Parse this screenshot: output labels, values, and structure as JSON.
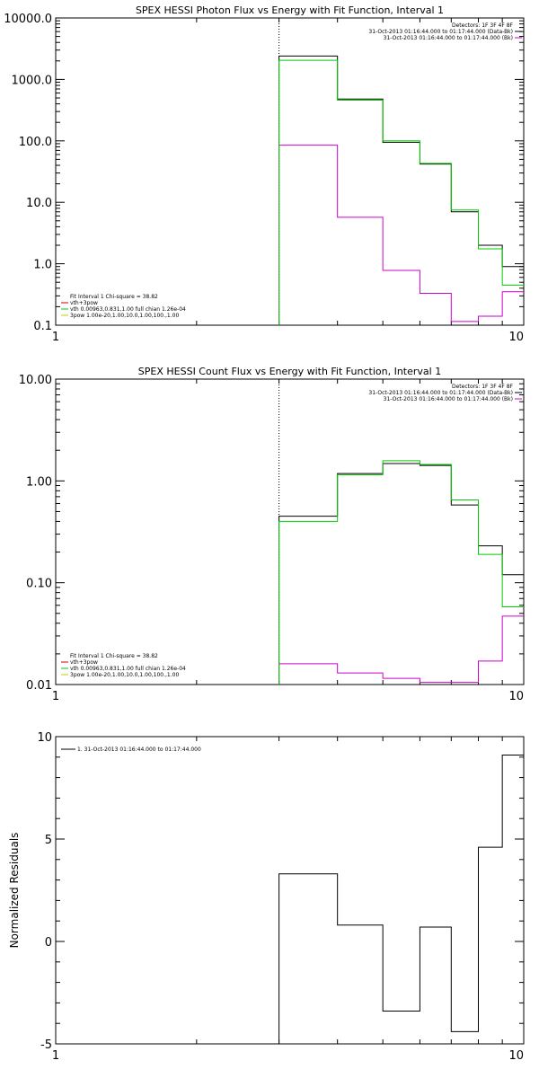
{
  "chart_data": [
    {
      "type": "line",
      "title": "SPEX HESSI Photon Flux vs Energy with Fit Function, Interval 1",
      "xlabel": "",
      "ylabel": "",
      "x_scale": "log",
      "y_scale": "log",
      "xlim": [
        1,
        10
      ],
      "ylim": [
        0.1,
        10000
      ],
      "x_ticks": [
        "1",
        "10"
      ],
      "y_ticks": [
        "0.1",
        "1.0",
        "10.0",
        "100.0",
        "1000.0",
        "10000.0"
      ],
      "marker_line_x": 3,
      "edges": [
        3,
        4,
        5,
        6,
        7,
        8,
        9,
        10
      ],
      "series": [
        {
          "name": "31-Oct-2013 01:16:44.000 to 01:17:44.000 (Data-Bk)",
          "color": "#000000",
          "values": [
            2400,
            480,
            95,
            42,
            7,
            2,
            0.9
          ]
        },
        {
          "name": "31-Oct-2013 01:16:44.000 to 01:17:44.000 (Bk)",
          "color": "#cc00cc",
          "values": [
            85,
            5.7,
            0.78,
            0.33,
            0.115,
            0.14,
            0.35
          ]
        },
        {
          "name": "vth+3pow",
          "color": "#00cc00",
          "values": [
            2050,
            460,
            100,
            43,
            7.5,
            1.75,
            0.45
          ]
        }
      ],
      "legend_top": {
        "detectors": "Detectors: 1F 3F 4F 8F",
        "entries": [
          "31-Oct-2013 01:16:44.000 to 01:17:44.000 (Data-Bk)",
          "31-Oct-2013 01:16:44.000 to 01:17:44.000 (Bk)"
        ]
      },
      "legend_bottom": [
        {
          "text": "Fit Interval 1    Chi-square = 38.82",
          "color": "#000000"
        },
        {
          "text": "vth+3pow",
          "color": "#cc0000"
        },
        {
          "text": "vth 0.00963,0.831,1.00   full chian 1.26e-04",
          "color": "#00cc00"
        },
        {
          "text": "3pow 1.00e-20,1.00,10.0,1.00,100.,1.00",
          "color": "#cccc00"
        }
      ]
    },
    {
      "type": "line",
      "title": "SPEX HESSI Count Flux vs Energy with Fit Function, Interval 1",
      "xlabel": "",
      "ylabel": "",
      "x_scale": "log",
      "y_scale": "log",
      "xlim": [
        1,
        10
      ],
      "ylim": [
        0.01,
        10
      ],
      "x_ticks": [
        "1",
        "10"
      ],
      "y_ticks": [
        "0.01",
        "0.10",
        "1.00",
        "10.00"
      ],
      "marker_line_x": 3,
      "edges": [
        3,
        4,
        5,
        6,
        7,
        8,
        9,
        10
      ],
      "series": [
        {
          "name": "31-Oct-2013 01:16:44.000 to 01:17:44.000 (Data-Bk)",
          "color": "#000000",
          "values": [
            0.45,
            1.18,
            1.48,
            1.42,
            0.58,
            0.23,
            0.12
          ]
        },
        {
          "name": "31-Oct-2013 01:16:44.000 to 01:17:44.000 (Bk)",
          "color": "#cc00cc",
          "values": [
            0.016,
            0.013,
            0.0115,
            0.0105,
            0.0105,
            0.017,
            0.047
          ]
        },
        {
          "name": "vth+3pow",
          "color": "#00cc00",
          "values": [
            0.4,
            1.15,
            1.58,
            1.45,
            0.65,
            0.19,
            0.058
          ]
        }
      ],
      "legend_top": {
        "detectors": "Detectors: 1F 3F 4F 8F",
        "entries": [
          "31-Oct-2013 01:16:44.000 to 01:17:44.000 (Data-Bk)",
          "31-Oct-2013 01:16:44.000 to 01:17:44.000 (Bk)"
        ]
      },
      "legend_bottom": [
        {
          "text": "Fit Interval 1    Chi-square = 38.82",
          "color": "#000000"
        },
        {
          "text": "vth+3pow",
          "color": "#cc0000"
        },
        {
          "text": "vth 0.00963,0.831,1.00   full chian 1.26e-04",
          "color": "#00cc00"
        },
        {
          "text": "3pow 1.00e-20,1.00,10.0,1.00,100.,1.00",
          "color": "#cccc00"
        }
      ]
    },
    {
      "type": "line",
      "title": "",
      "xlabel": "",
      "ylabel": "Normalized Residuals",
      "x_scale": "log",
      "y_scale": "linear",
      "xlim": [
        1,
        10
      ],
      "ylim": [
        -5,
        10
      ],
      "x_ticks": [
        "1",
        "10"
      ],
      "y_ticks": [
        "-5",
        "0",
        "5",
        "10"
      ],
      "edges": [
        3,
        4,
        5,
        6,
        7,
        8,
        9,
        10
      ],
      "series": [
        {
          "name": "1. 31-Oct-2013 01:16:44.000 to 01:17:44.000",
          "color": "#000000",
          "values": [
            3.3,
            0.8,
            -3.4,
            0.7,
            -4.4,
            4.6,
            9.1
          ]
        }
      ],
      "legend_top": {
        "entries": [
          "1. 31-Oct-2013 01:16:44.000 to 01:17:44.000"
        ]
      }
    }
  ]
}
